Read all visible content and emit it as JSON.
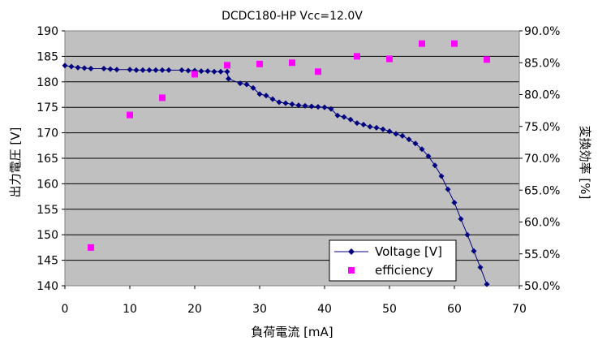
{
  "chart_data": {
    "type": "scatter",
    "title": "DCDC180-HP Vcc=12.0V",
    "xlabel": "負荷電流 [mA]",
    "ylabel": "出力電圧 [V]",
    "y2label": "変換効率 [%]",
    "xlim": [
      0,
      70
    ],
    "ylim": [
      140,
      190
    ],
    "y2lim": [
      0.5,
      0.9
    ],
    "xticks": [
      "0",
      "10",
      "20",
      "30",
      "40",
      "50",
      "60",
      "70"
    ],
    "yticks": [
      "140",
      "145",
      "150",
      "155",
      "160",
      "165",
      "170",
      "175",
      "180",
      "185",
      "190"
    ],
    "y2ticks": [
      "50.0%",
      "55.0%",
      "60.0%",
      "65.0%",
      "70.0%",
      "75.0%",
      "80.0%",
      "85.0%",
      "90.0%"
    ],
    "grid": "horizontal",
    "legend_position": "bottom-right",
    "colors": {
      "plot_bg": "#c0c0c0",
      "voltage": "#000080",
      "efficiency": "#ff00ff"
    },
    "series": [
      {
        "name": "Voltage [V]",
        "axis": "left",
        "marker": "diamond",
        "line": true,
        "x": [
          0,
          1,
          2,
          3,
          4,
          6,
          7,
          8,
          10,
          11,
          12,
          13,
          14,
          15,
          16,
          18,
          19,
          20,
          21,
          22,
          23,
          24,
          25,
          25.2,
          27,
          28,
          29,
          30,
          31,
          32,
          33,
          34,
          35,
          36,
          37,
          38,
          39,
          40,
          41,
          42,
          43,
          44,
          45,
          46,
          47,
          48,
          49,
          50,
          51,
          52,
          53,
          54,
          55,
          56,
          57,
          58,
          59,
          60,
          61,
          62,
          63,
          64,
          65
        ],
        "y": [
          183.2,
          183,
          182.8,
          182.7,
          182.6,
          182.6,
          182.5,
          182.4,
          182.4,
          182.3,
          182.3,
          182.3,
          182.3,
          182.3,
          182.3,
          182.3,
          182.2,
          182.2,
          182.1,
          182.1,
          182,
          182,
          182,
          180.6,
          179.7,
          179.5,
          178.8,
          177.6,
          177.3,
          176.6,
          176,
          175.8,
          175.6,
          175.4,
          175.3,
          175.2,
          175.1,
          175,
          174.7,
          173.4,
          173.1,
          172.6,
          171.9,
          171.6,
          171.2,
          171,
          170.7,
          170.3,
          169.8,
          169.4,
          168.7,
          167.9,
          166.8,
          165.4,
          163.6,
          161.5,
          158.9,
          156.3,
          153.1,
          150,
          146.8,
          143.6,
          140.3
        ]
      },
      {
        "name": "efficiency",
        "axis": "right",
        "marker": "square",
        "line": false,
        "x": [
          4,
          10,
          15,
          20,
          25,
          30,
          35,
          39,
          45,
          50,
          55,
          60,
          65
        ],
        "y": [
          0.56,
          0.768,
          0.795,
          0.832,
          0.846,
          0.848,
          0.85,
          0.836,
          0.86,
          0.856,
          0.88,
          0.88,
          0.855
        ]
      }
    ]
  }
}
